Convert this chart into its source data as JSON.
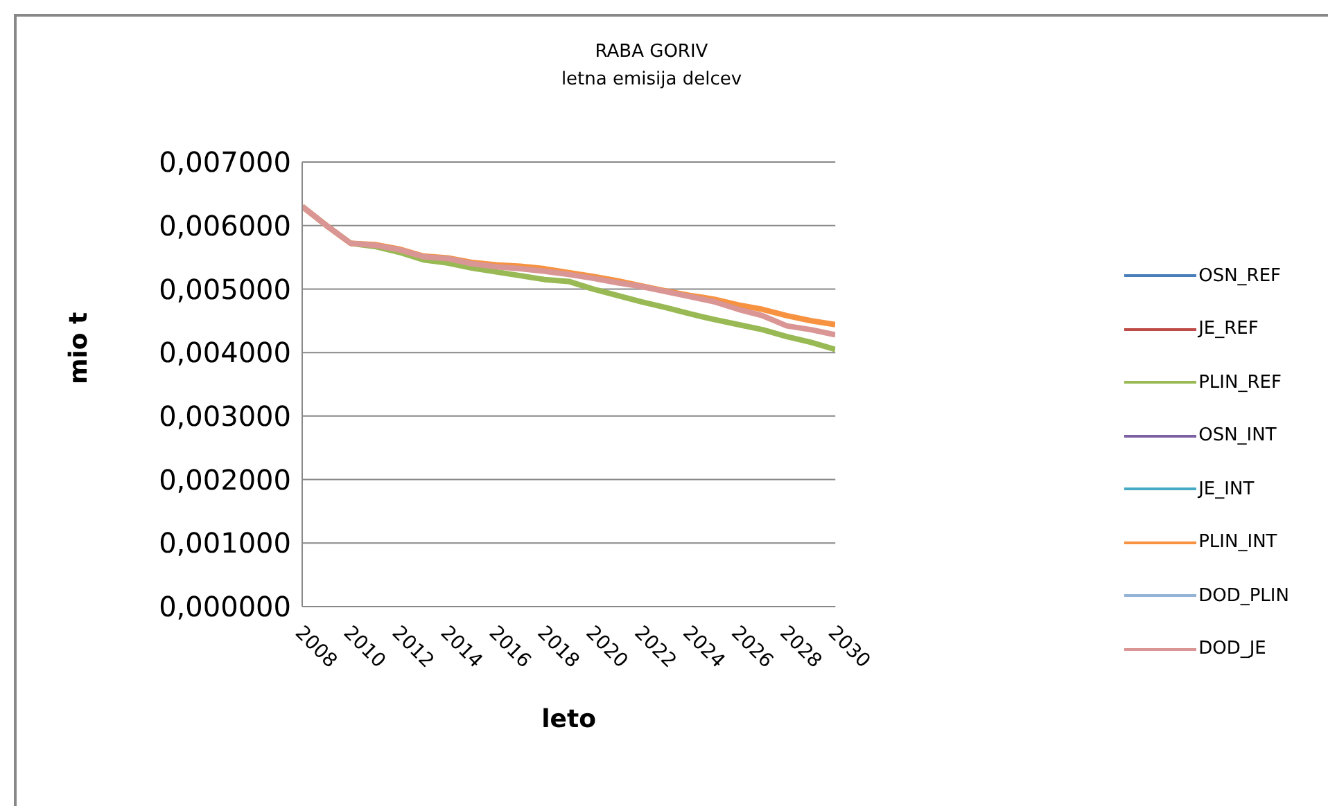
{
  "chart_data": {
    "type": "line",
    "title": "RABA GORIV",
    "subtitle": "letna emisija  delcev",
    "xlabel": "leto",
    "ylabel": "mio t",
    "x": [
      2008,
      2009,
      2010,
      2011,
      2012,
      2013,
      2014,
      2015,
      2016,
      2017,
      2018,
      2019,
      2020,
      2021,
      2022,
      2023,
      2024,
      2025,
      2026,
      2027,
      2028,
      2029,
      2030
    ],
    "xlim": [
      2008,
      2030
    ],
    "xticks": [
      2008,
      2010,
      2012,
      2014,
      2016,
      2018,
      2020,
      2022,
      2024,
      2026,
      2028,
      2030
    ],
    "ylim": [
      0,
      0.007
    ],
    "yticks": [
      {
        "value": 0,
        "label": "0,000000"
      },
      {
        "value": 0.001,
        "label": "0,001000"
      },
      {
        "value": 0.002,
        "label": "0,002000"
      },
      {
        "value": 0.003,
        "label": "0,003000"
      },
      {
        "value": 0.004,
        "label": "0,004000"
      },
      {
        "value": 0.005,
        "label": "0,005000"
      },
      {
        "value": 0.006,
        "label": "0,006000"
      },
      {
        "value": 0.007,
        "label": "0,007000"
      }
    ],
    "grid": "y",
    "legend": "right",
    "marker": "none",
    "line_style": "solid",
    "series": [
      {
        "name": "OSN_REF",
        "color": "#4a7ebb",
        "values": [
          null,
          null,
          null,
          null,
          null,
          null,
          null,
          null,
          null,
          null,
          null,
          null,
          null,
          null,
          null,
          null,
          null,
          null,
          null,
          null,
          null,
          null,
          null
        ]
      },
      {
        "name": "JE_REF",
        "color": "#be4b48",
        "values": [
          null,
          null,
          null,
          null,
          null,
          null,
          null,
          null,
          null,
          null,
          null,
          null,
          null,
          null,
          null,
          null,
          null,
          null,
          null,
          null,
          null,
          null,
          null
        ]
      },
      {
        "name": "PLIN_REF",
        "color": "#98b954",
        "values": [
          0.0063,
          0.006,
          0.00572,
          0.00567,
          0.00558,
          0.00546,
          0.00541,
          0.00533,
          0.00527,
          0.00521,
          0.00515,
          0.00512,
          0.005,
          0.0049,
          0.0048,
          0.00471,
          0.00461,
          0.00452,
          0.00444,
          0.00436,
          0.00425,
          0.00416,
          0.00405
        ]
      },
      {
        "name": "OSN_INT",
        "color": "#7d60a0",
        "values": [
          null,
          null,
          null,
          null,
          null,
          null,
          null,
          null,
          null,
          null,
          null,
          null,
          null,
          null,
          null,
          null,
          null,
          null,
          null,
          null,
          null,
          null,
          null
        ]
      },
      {
        "name": "JE_INT",
        "color": "#46aac5",
        "values": [
          null,
          null,
          null,
          null,
          null,
          null,
          null,
          null,
          null,
          null,
          null,
          null,
          null,
          null,
          null,
          null,
          null,
          null,
          null,
          null,
          null,
          null,
          null
        ]
      },
      {
        "name": "PLIN_INT",
        "color": "#f69240",
        "values": [
          0.0063,
          0.006,
          0.00572,
          0.0057,
          0.00563,
          0.00552,
          0.00549,
          0.00542,
          0.00538,
          0.00536,
          0.00532,
          0.00526,
          0.0052,
          0.00513,
          0.00505,
          0.00497,
          0.0049,
          0.00484,
          0.00475,
          0.00468,
          0.00458,
          0.0045,
          0.00444
        ]
      },
      {
        "name": "DOD_PLIN",
        "color": "#95b3d7",
        "values": [
          null,
          null,
          null,
          null,
          null,
          null,
          null,
          null,
          null,
          null,
          null,
          null,
          null,
          null,
          null,
          null,
          null,
          null,
          null,
          null,
          null,
          null,
          null
        ]
      },
      {
        "name": "DOD_JE",
        "color": "#d99694",
        "values": [
          0.0063,
          0.006,
          0.00572,
          0.00569,
          0.00562,
          0.00551,
          0.00548,
          0.0054,
          0.00535,
          0.00532,
          0.00528,
          0.00523,
          0.00517,
          0.0051,
          0.00504,
          0.00496,
          0.00488,
          0.0048,
          0.00468,
          0.00458,
          0.00442,
          0.00436,
          0.00428
        ]
      }
    ]
  }
}
